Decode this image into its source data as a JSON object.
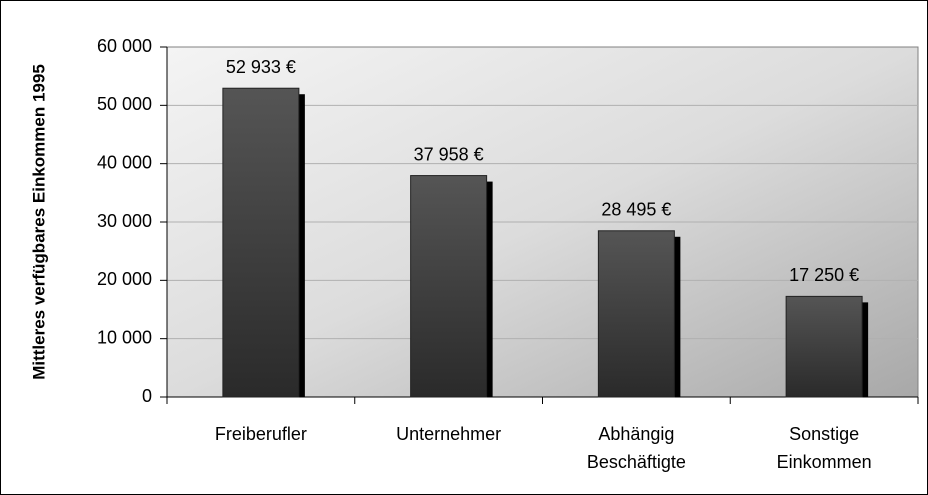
{
  "chart_data": {
    "type": "bar",
    "y_axis_label": "Mittleres verfügbares Einkommen 1995",
    "categories": [
      "Freiberufler",
      "Unternehmer",
      "Abhängig\nBeschäftigte",
      "Sonstige\nEinkommen"
    ],
    "values": [
      52933,
      37958,
      28495,
      17250
    ],
    "value_labels": [
      "52 933 €",
      "37 958 €",
      "28 495 €",
      "17 250 €"
    ],
    "color": "#3a3a3a",
    "ylim": [
      0,
      60000
    ],
    "yticks": [
      0,
      {
        "value": 10000,
        "label": "10 000"
      },
      {
        "value": 20000,
        "label": "20 000"
      },
      {
        "value": 30000,
        "label": "30 000"
      },
      {
        "value": 40000,
        "label": "40 000"
      },
      {
        "value": 50000,
        "label": "50 000"
      },
      {
        "value": 60000,
        "label": "60 000"
      }
    ],
    "grid": true
  }
}
